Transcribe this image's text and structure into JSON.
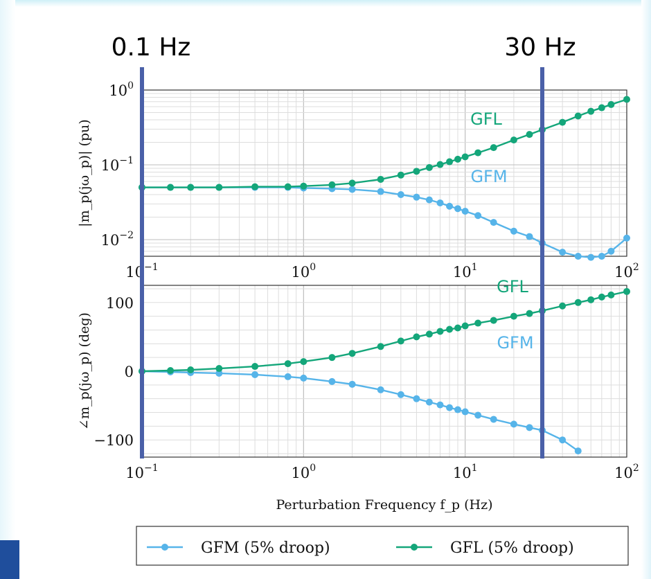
{
  "colors": {
    "gfm": "#56b4e9",
    "gfl": "#14a67a",
    "marker_line": "#4a60a8",
    "grid": "#cccccc"
  },
  "markers": [
    {
      "label": "0.1 Hz",
      "freq": 0.1
    },
    {
      "label": "30 Hz",
      "freq": 30
    }
  ],
  "chart_data": [
    {
      "type": "line",
      "scale": "loglog",
      "xlim": [
        0.1,
        100
      ],
      "ylim": [
        0.006,
        1
      ],
      "ylabel": "|m_p(jω_p)| (pu)",
      "x_ticks": [
        "10^-1",
        "10^0",
        "10^1",
        "10^2"
      ],
      "y_ticks": [
        "10^0",
        "10^-1",
        "10^-2"
      ],
      "annotations": [
        {
          "text": "GFL",
          "series": "gfl"
        },
        {
          "text": "GFM",
          "series": "gfm"
        }
      ],
      "series": [
        {
          "name": "GFM (5% droop)",
          "key": "gfm",
          "x": [
            0.1,
            0.15,
            0.2,
            0.3,
            0.5,
            0.8,
            1,
            1.5,
            2,
            3,
            4,
            5,
            6,
            7,
            8,
            9,
            10,
            12,
            15,
            20,
            25,
            30,
            40,
            50,
            60,
            70,
            80,
            100
          ],
          "y": [
            0.05,
            0.05,
            0.05,
            0.05,
            0.05,
            0.05,
            0.049,
            0.048,
            0.047,
            0.044,
            0.04,
            0.037,
            0.034,
            0.031,
            0.028,
            0.026,
            0.024,
            0.021,
            0.017,
            0.013,
            0.011,
            0.009,
            0.0068,
            0.006,
            0.0058,
            0.006,
            0.007,
            0.0105
          ]
        },
        {
          "name": "GFL (5% droop)",
          "key": "gfl",
          "x": [
            0.1,
            0.15,
            0.2,
            0.3,
            0.5,
            0.8,
            1,
            1.5,
            2,
            3,
            4,
            5,
            6,
            7,
            8,
            9,
            10,
            12,
            15,
            20,
            25,
            30,
            40,
            50,
            60,
            70,
            80,
            100
          ],
          "y": [
            0.05,
            0.05,
            0.05,
            0.05,
            0.051,
            0.051,
            0.052,
            0.054,
            0.057,
            0.064,
            0.073,
            0.082,
            0.092,
            0.101,
            0.11,
            0.119,
            0.128,
            0.145,
            0.17,
            0.215,
            0.255,
            0.295,
            0.37,
            0.45,
            0.52,
            0.58,
            0.64,
            0.75
          ]
        }
      ]
    },
    {
      "type": "line",
      "scale": "semilogx",
      "xlim": [
        0.1,
        100
      ],
      "ylim": [
        -125,
        125
      ],
      "ylabel": "∠m_p(jω_p) (deg)",
      "xlabel": "Perturbation Frequency f_p (Hz)",
      "x_ticks": [
        "10^-1",
        "10^0",
        "10^1",
        "10^2"
      ],
      "y_ticks": [
        "100",
        "0",
        "−100"
      ],
      "annotations": [
        {
          "text": "GFL",
          "series": "gfl"
        },
        {
          "text": "GFM",
          "series": "gfm"
        }
      ],
      "series": [
        {
          "name": "GFM (5% droop)",
          "key": "gfm",
          "x": [
            0.1,
            0.15,
            0.2,
            0.3,
            0.5,
            0.8,
            1,
            1.5,
            2,
            3,
            4,
            5,
            6,
            7,
            8,
            9,
            10,
            12,
            15,
            20,
            25,
            30,
            40,
            50
          ],
          "y": [
            0,
            -1,
            -2,
            -3,
            -5,
            -8,
            -10,
            -15,
            -19,
            -27,
            -34,
            -40,
            -45,
            -49,
            -53,
            -56,
            -59,
            -64,
            -70,
            -77,
            -82,
            -86,
            -100,
            -116
          ]
        },
        {
          "name": "GFL (5% droop)",
          "key": "gfl",
          "x": [
            0.1,
            0.15,
            0.2,
            0.3,
            0.5,
            0.8,
            1,
            1.5,
            2,
            3,
            4,
            5,
            6,
            7,
            8,
            9,
            10,
            12,
            15,
            20,
            25,
            30,
            40,
            50,
            60,
            70,
            80,
            100
          ],
          "y": [
            0,
            1,
            2,
            4,
            7,
            11,
            14,
            20,
            26,
            36,
            44,
            50,
            54,
            58,
            61,
            63,
            66,
            70,
            74,
            80,
            84,
            88,
            95,
            100,
            104,
            108,
            111,
            116
          ]
        }
      ]
    }
  ],
  "legend": {
    "items": [
      {
        "label": "GFM (5% droop)",
        "key": "gfm"
      },
      {
        "label": "GFL (5% droop)",
        "key": "gfl"
      }
    ]
  }
}
